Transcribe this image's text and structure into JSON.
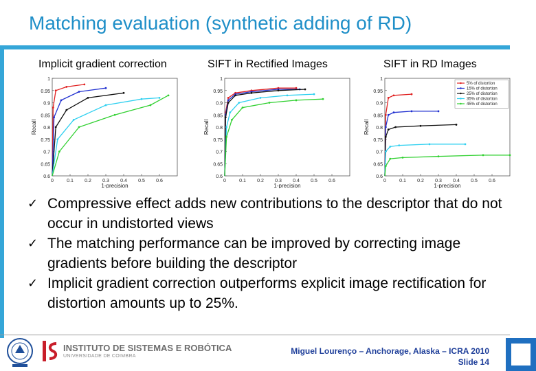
{
  "slide": {
    "title": "Matching evaluation (synthetic adding of RD)"
  },
  "plots": {
    "captions": [
      "Implicit gradient correction",
      "SIFT in Rectified Images",
      "SIFT in RD Images"
    ],
    "xlabel": "1-precision",
    "ylabel": "Recall",
    "x_ticks": [
      "0",
      "0.1",
      "0.2",
      "0.3",
      "0.4",
      "0.5",
      "0.6"
    ],
    "y_ticks": [
      "0.6",
      "0.65",
      "0.7",
      "0.75",
      "0.8",
      "0.85",
      "0.9",
      "0.95",
      "1"
    ],
    "legend": [
      "5% of distortion",
      "15% of distortion",
      "25% of distortion",
      "35% of distortion",
      "45% of distortion"
    ]
  },
  "chart_data": [
    {
      "type": "line",
      "title": "Implicit gradient correction",
      "xlabel": "1-precision",
      "ylabel": "Recall",
      "xlim": [
        0,
        0.7
      ],
      "ylim": [
        0.6,
        1
      ],
      "series": [
        {
          "name": "5% of distortion",
          "color": "#e02020",
          "x": [
            0,
            0.005,
            0.02,
            0.08,
            0.18
          ],
          "y": [
            0.6,
            0.88,
            0.95,
            0.965,
            0.975
          ]
        },
        {
          "name": "15% of distortion",
          "color": "#2030d0",
          "x": [
            0,
            0.01,
            0.05,
            0.15,
            0.3
          ],
          "y": [
            0.6,
            0.84,
            0.91,
            0.945,
            0.96
          ]
        },
        {
          "name": "25% of distortion",
          "color": "#101010",
          "x": [
            0,
            0.02,
            0.08,
            0.2,
            0.4
          ],
          "y": [
            0.6,
            0.8,
            0.87,
            0.92,
            0.94
          ]
        },
        {
          "name": "35% of distortion",
          "color": "#30d0f0",
          "x": [
            0,
            0.03,
            0.12,
            0.3,
            0.5,
            0.6
          ],
          "y": [
            0.6,
            0.75,
            0.83,
            0.89,
            0.915,
            0.92
          ]
        },
        {
          "name": "45% of distortion",
          "color": "#30d030",
          "x": [
            0,
            0.04,
            0.15,
            0.35,
            0.55,
            0.65
          ],
          "y": [
            0.6,
            0.7,
            0.8,
            0.85,
            0.89,
            0.93
          ]
        }
      ]
    },
    {
      "type": "line",
      "title": "SIFT in Rectified Images",
      "xlabel": "1-precision",
      "ylabel": "Recall",
      "xlim": [
        0,
        0.7
      ],
      "ylim": [
        0.6,
        1
      ],
      "series": [
        {
          "name": "5% of distortion",
          "color": "#e02020",
          "x": [
            0,
            0.005,
            0.02,
            0.06,
            0.15,
            0.3,
            0.4
          ],
          "y": [
            0.6,
            0.86,
            0.92,
            0.94,
            0.95,
            0.96,
            0.96
          ]
        },
        {
          "name": "15% of distortion",
          "color": "#2030d0",
          "x": [
            0,
            0.005,
            0.02,
            0.06,
            0.15,
            0.3,
            0.42
          ],
          "y": [
            0.6,
            0.85,
            0.91,
            0.935,
            0.945,
            0.955,
            0.955
          ]
        },
        {
          "name": "25% of distortion",
          "color": "#101010",
          "x": [
            0,
            0.005,
            0.02,
            0.06,
            0.15,
            0.3,
            0.45
          ],
          "y": [
            0.6,
            0.84,
            0.9,
            0.93,
            0.94,
            0.95,
            0.955
          ]
        },
        {
          "name": "35% of distortion",
          "color": "#30d0f0",
          "x": [
            0,
            0.01,
            0.03,
            0.08,
            0.2,
            0.35,
            0.5
          ],
          "y": [
            0.6,
            0.8,
            0.86,
            0.9,
            0.92,
            0.93,
            0.935
          ]
        },
        {
          "name": "45% of distortion",
          "color": "#30d030",
          "x": [
            0,
            0.01,
            0.04,
            0.1,
            0.25,
            0.4,
            0.55
          ],
          "y": [
            0.6,
            0.76,
            0.83,
            0.88,
            0.9,
            0.91,
            0.915
          ]
        }
      ]
    },
    {
      "type": "line",
      "title": "SIFT in RD Images",
      "xlabel": "1-precision",
      "ylabel": "Recall",
      "xlim": [
        0,
        0.7
      ],
      "ylim": [
        0.6,
        1
      ],
      "legend_position": "top-right",
      "series": [
        {
          "name": "5% of distortion",
          "color": "#e02020",
          "x": [
            0,
            0.005,
            0.02,
            0.05,
            0.15
          ],
          "y": [
            0.6,
            0.85,
            0.92,
            0.93,
            0.935
          ]
        },
        {
          "name": "15% of distortion",
          "color": "#2030d0",
          "x": [
            0,
            0.005,
            0.02,
            0.05,
            0.15,
            0.3
          ],
          "y": [
            0.6,
            0.8,
            0.85,
            0.86,
            0.865,
            0.865
          ]
        },
        {
          "name": "25% of distortion",
          "color": "#101010",
          "x": [
            0,
            0.005,
            0.02,
            0.06,
            0.2,
            0.4
          ],
          "y": [
            0.6,
            0.76,
            0.79,
            0.8,
            0.805,
            0.81
          ]
        },
        {
          "name": "35% of distortion",
          "color": "#30d0f0",
          "x": [
            0,
            0.005,
            0.03,
            0.08,
            0.25,
            0.45
          ],
          "y": [
            0.6,
            0.7,
            0.72,
            0.725,
            0.73,
            0.73
          ]
        },
        {
          "name": "45% of distortion",
          "color": "#30d030",
          "x": [
            0,
            0.005,
            0.03,
            0.1,
            0.3,
            0.55,
            0.7
          ],
          "y": [
            0.6,
            0.64,
            0.67,
            0.675,
            0.68,
            0.685,
            0.685
          ]
        }
      ]
    }
  ],
  "bullets": [
    "Compressive effect adds new contributions to the descriptor that do not occur in undistorted views",
    "The matching performance can be improved by correcting image gradients before building the descriptor",
    "Implicit gradient correction outperforms explicit image rectification for distortion amounts up to 25%."
  ],
  "check_symbol": "✓",
  "footer": {
    "author": "Miguel Lourenço – Anchorage, Alaska – ICRA 2010",
    "slide": "Slide 14",
    "logo_text": "INSTITUTO DE SISTEMAS E ROBÓTICA",
    "logo_subtext": "UNIVERSIDADE DE COIMBRA"
  },
  "colors": {
    "title": "#1f8fc8",
    "accent_bar": "#35a6d8",
    "footer_text": "#1f3f9a",
    "logo_red": "#c81e2a",
    "seal_blue": "#1f4f9a"
  },
  "icons": {
    "check": "checkmark-icon",
    "university_seal": "university-seal-icon",
    "institute_logo": "isr-logo-icon"
  }
}
